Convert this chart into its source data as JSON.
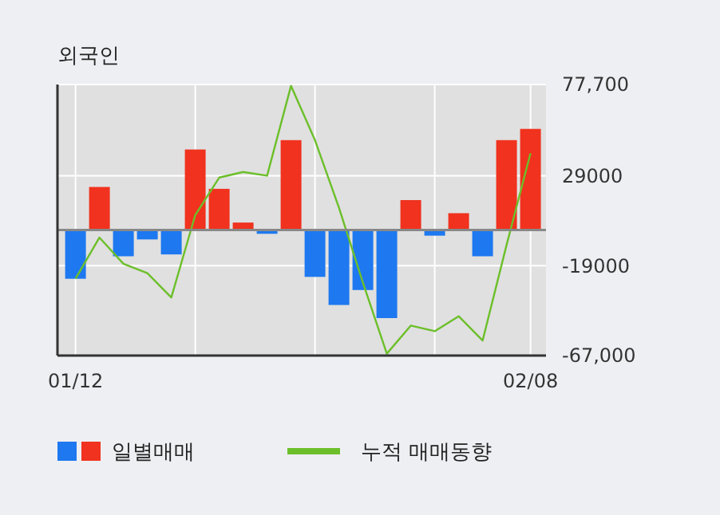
{
  "chart_data": {
    "type": "bar",
    "title": "외국인",
    "categories": [
      "01/12",
      null,
      null,
      null,
      null,
      null,
      null,
      null,
      null,
      null,
      null,
      null,
      null,
      null,
      null,
      null,
      null,
      null,
      null,
      "02/08"
    ],
    "series": [
      {
        "name": "일별매매",
        "colors": [
          "#1e78f0",
          "#f0321e",
          "#1e78f0",
          "#1e78f0",
          "#1e78f0",
          "#f0321e",
          "#f0321e",
          "#f0321e",
          "#1e78f0",
          "#f0321e",
          "#1e78f0",
          "#1e78f0",
          "#1e78f0",
          "#1e78f0",
          "#f0321e",
          "#1e78f0",
          "#f0321e",
          "#1e78f0",
          "#f0321e",
          "#f0321e"
        ],
        "values": [
          -26000,
          23000,
          -14000,
          -5000,
          -13000,
          43000,
          22000,
          4000,
          -2000,
          48000,
          -25000,
          -40000,
          -32000,
          -47000,
          16000,
          -3000,
          9000,
          -14000,
          48000,
          54000
        ]
      },
      {
        "name": "누적 매매동향",
        "type": "line",
        "color": "#6cbf2a",
        "values": [
          -26000,
          -4000,
          -18000,
          -23000,
          -36000,
          8000,
          28000,
          31000,
          29000,
          77000,
          48000,
          12000,
          -28000,
          -66000,
          -51000,
          -54000,
          -46000,
          -59000,
          -8000,
          41000
        ]
      }
    ],
    "ylim": [
      -67000,
      77700
    ],
    "yticks": [
      {
        "value": 77700,
        "label": "77,700"
      },
      29000,
      -19000,
      {
        "value": -67000,
        "label": "-67,000"
      }
    ],
    "grid": true,
    "legend": "bottom"
  }
}
